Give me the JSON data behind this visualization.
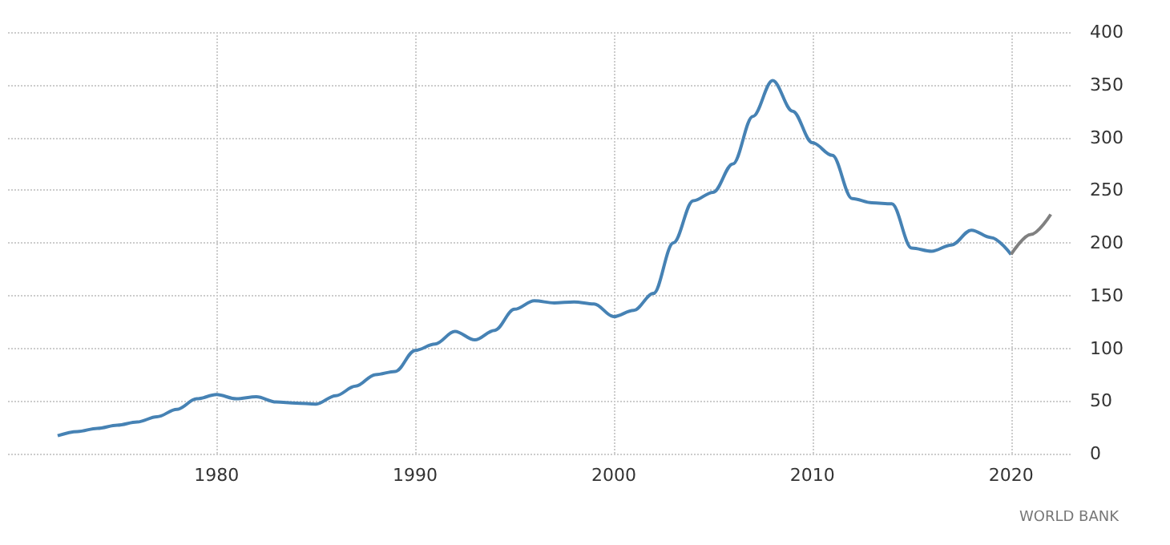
{
  "chart_data": {
    "type": "line",
    "xlim": [
      1969.5,
      2023
    ],
    "xticks": [
      1980,
      1990,
      2000,
      2010,
      2020
    ],
    "ylim": [
      0,
      400
    ],
    "yticks": [
      0,
      50,
      100,
      150,
      200,
      250,
      300,
      350,
      400
    ],
    "grid": true,
    "marker": "none",
    "line_style": "solid",
    "annotations": [
      "WORLD BANK"
    ],
    "series": [
      {
        "color": "#4682b4",
        "x": [
          1972,
          1973,
          1974,
          1975,
          1976,
          1977,
          1978,
          1979,
          1980,
          1981,
          1982,
          1983,
          1984,
          1985,
          1986,
          1987,
          1988,
          1989,
          1990,
          1991,
          1992,
          1993,
          1994,
          1995,
          1996,
          1997,
          1998,
          1999,
          2000,
          2001,
          2002,
          2003,
          2004,
          2005,
          2006,
          2007,
          2008,
          2009,
          2010,
          2011,
          2012,
          2013,
          2014,
          2015,
          2016,
          2017,
          2018,
          2019,
          2020
        ],
        "values": [
          17,
          21,
          24,
          27,
          30,
          35,
          42,
          52,
          56,
          52,
          54,
          49,
          48,
          47,
          55,
          64,
          75,
          78,
          98,
          104,
          116,
          108,
          117,
          137,
          145,
          143,
          144,
          142,
          130,
          136,
          152,
          200,
          240,
          248,
          275,
          320,
          354,
          325,
          295,
          283,
          242,
          238,
          237,
          195,
          192,
          198,
          212,
          205,
          189
        ]
      },
      {
        "color": "#808080",
        "x": [
          2020,
          2021,
          2022
        ],
        "values": [
          189,
          208,
          227
        ]
      }
    ]
  }
}
